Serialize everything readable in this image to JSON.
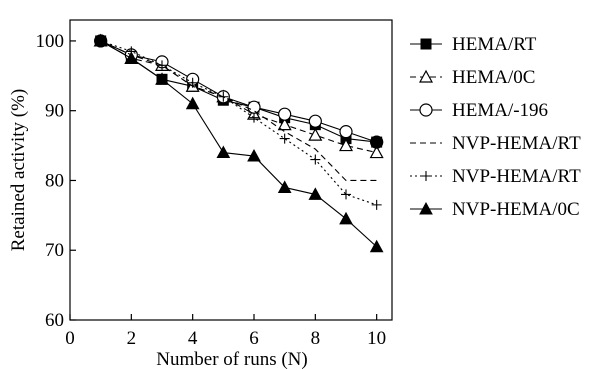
{
  "chart_data": {
    "type": "line",
    "title": "",
    "xlabel": "Number of runs (N)",
    "ylabel": "Retained activity (%)",
    "xlim": [
      0,
      10.5
    ],
    "ylim": [
      60,
      103
    ],
    "xticks": [
      0,
      2,
      4,
      6,
      8,
      10
    ],
    "yticks": [
      60,
      70,
      80,
      90,
      100
    ],
    "grid": false,
    "legend_position": "right",
    "x": [
      1,
      2,
      3,
      4,
      5,
      6,
      7,
      8,
      9,
      10
    ],
    "series": [
      {
        "name": "HEMA/RT",
        "marker": "filled-square",
        "dash": "solid",
        "values": [
          100,
          97.5,
          94.5,
          93.5,
          91.5,
          90.5,
          89,
          88,
          86,
          85.5
        ]
      },
      {
        "name": "HEMA/0C",
        "marker": "open-triangle",
        "dash": "dashed",
        "values": [
          100,
          97.5,
          96.5,
          93.5,
          92,
          89.5,
          88,
          86.5,
          85,
          84
        ]
      },
      {
        "name": "HEMA/-196",
        "marker": "open-circle",
        "dash": "solid",
        "values": [
          100,
          98,
          97,
          94.5,
          92,
          90.5,
          89.5,
          88.5,
          87,
          85.5
        ]
      },
      {
        "name": "NVP-HEMA/RT",
        "marker": "none",
        "dash": "dashed",
        "values": [
          100,
          98,
          96.5,
          93.5,
          92,
          90,
          87,
          84.5,
          80,
          80
        ]
      },
      {
        "name": "NVP-HEMA/RT",
        "marker": "plus",
        "dash": "dotted",
        "values": [
          100,
          98.5,
          96.5,
          94,
          92,
          89,
          86,
          83,
          78,
          76.5
        ]
      },
      {
        "name": "NVP-HEMA/0C",
        "marker": "filled-triangle",
        "dash": "solid",
        "values": [
          100,
          97.5,
          94.5,
          91,
          84,
          83.5,
          79,
          78,
          74.5,
          70.5
        ]
      }
    ]
  }
}
